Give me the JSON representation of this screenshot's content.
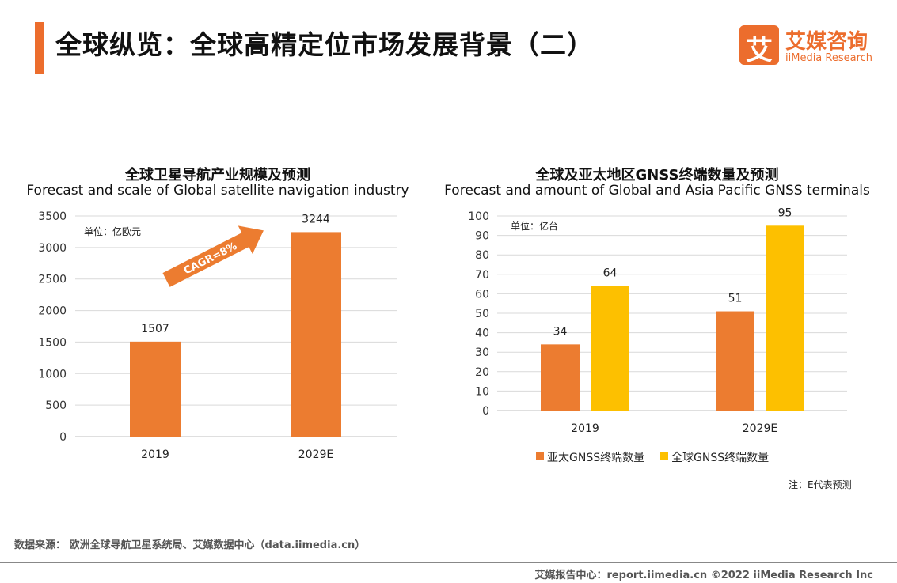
{
  "page": {
    "title": "全球纵览：全球高精定位市场发展背景（二）",
    "logo_cn": "艾媒咨询",
    "logo_en": "iiMedia Research",
    "logo_glyph": "艾",
    "accent_color": "#ec6d2d",
    "source": "数据来源：  欧洲全球导航卫星系统局、艾媒数据中心（data.iimedia.cn）",
    "footer": "艾媒报告中心：report.iimedia.cn    ©2022  iiMedia Research  Inc",
    "note": "注：E代表预测"
  },
  "chart_data": [
    {
      "type": "bar",
      "title": "全球卫星导航产业规模及预测",
      "subtitle": "Forecast and scale of Global satellite navigation industry",
      "unit_label": "单位：亿欧元",
      "categories": [
        "2019",
        "2029E"
      ],
      "values": [
        1507,
        3244
      ],
      "ylim": [
        0,
        3500
      ],
      "yticks": [
        0,
        500,
        1000,
        1500,
        2000,
        2500,
        3000,
        3500
      ],
      "grid": true,
      "annotation": "CAGR=8%",
      "colors": {
        "bar": "#ec7c30"
      }
    },
    {
      "type": "bar",
      "title": "全球及亚太地区GNSS终端数量及预测",
      "subtitle": "Forecast and amount of Global and Asia Pacific GNSS terminals",
      "unit_label": "单位：亿台",
      "categories": [
        "2019",
        "2029E"
      ],
      "series": [
        {
          "name": "亚太GNSS终端数量",
          "values": [
            34,
            51
          ],
          "color": "#ec7c30"
        },
        {
          "name": "全球GNSS终端数量",
          "values": [
            64,
            95
          ],
          "color": "#fdc000"
        }
      ],
      "ylim": [
        0,
        100
      ],
      "yticks": [
        0,
        10,
        20,
        30,
        40,
        50,
        60,
        70,
        80,
        90,
        100
      ],
      "grid": true,
      "legend": "bottom"
    }
  ]
}
